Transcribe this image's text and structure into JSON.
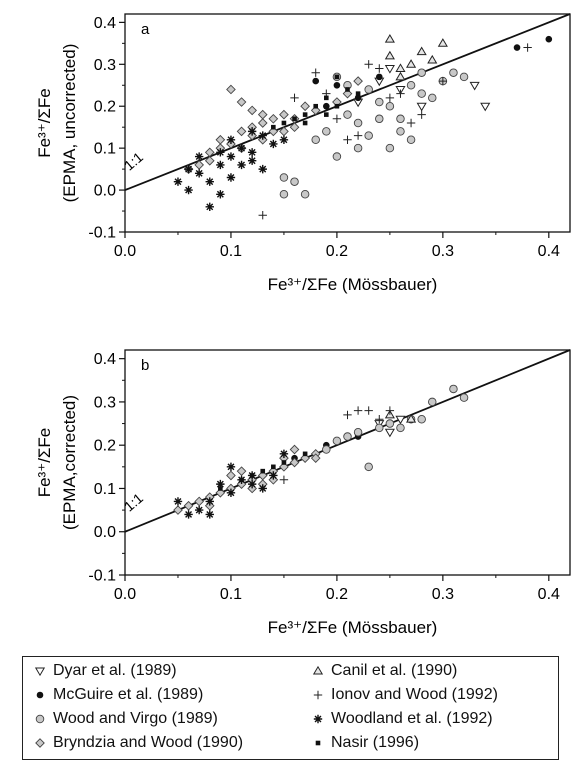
{
  "chart_data": [
    {
      "type": "scatter",
      "panel_label": "a",
      "xlabel": "Fe³⁺/ΣFe (Mössbauer)",
      "ylabel_line1": "Fe³⁺/ΣFe",
      "ylabel_line2": "(EPMA, uncorrected)",
      "xlim": [
        0.0,
        0.42
      ],
      "ylim": [
        -0.1,
        0.42
      ],
      "xticks": [
        "0.0",
        "0.1",
        "0.2",
        "0.3",
        "0.4"
      ],
      "yticks": [
        "-0.1",
        "0.0",
        "0.1",
        "0.2",
        "0.3",
        "0.4"
      ],
      "line_label": "1:1",
      "grid": false,
      "series": [
        {
          "name": "Dyar et al. (1989)",
          "marker": "tri-down",
          "points": [
            [
              0.24,
              0.26
            ],
            [
              0.26,
              0.24
            ],
            [
              0.28,
              0.2
            ],
            [
              0.33,
              0.25
            ],
            [
              0.34,
              0.2
            ],
            [
              0.22,
              0.21
            ],
            [
              0.25,
              0.29
            ]
          ]
        },
        {
          "name": "McGuire et al. (1989)",
          "marker": "dot",
          "points": [
            [
              0.37,
              0.34
            ],
            [
              0.4,
              0.36
            ],
            [
              0.18,
              0.26
            ],
            [
              0.2,
              0.25
            ],
            [
              0.22,
              0.22
            ],
            [
              0.19,
              0.2
            ],
            [
              0.24,
              0.27
            ]
          ]
        },
        {
          "name": "Wood and Virgo (1989)",
          "marker": "circle",
          "points": [
            [
              0.15,
              0.03
            ],
            [
              0.16,
              0.02
            ],
            [
              0.15,
              -0.01
            ],
            [
              0.17,
              -0.01
            ],
            [
              0.2,
              0.08
            ],
            [
              0.22,
              0.1
            ],
            [
              0.23,
              0.13
            ],
            [
              0.25,
              0.1
            ],
            [
              0.27,
              0.12
            ],
            [
              0.26,
              0.17
            ],
            [
              0.28,
              0.23
            ],
            [
              0.29,
              0.22
            ],
            [
              0.31,
              0.28
            ],
            [
              0.32,
              0.27
            ],
            [
              0.2,
              0.27
            ],
            [
              0.21,
              0.25
            ],
            [
              0.23,
              0.24
            ],
            [
              0.24,
              0.21
            ],
            [
              0.25,
              0.2
            ],
            [
              0.27,
              0.25
            ],
            [
              0.19,
              0.14
            ],
            [
              0.21,
              0.18
            ],
            [
              0.18,
              0.12
            ],
            [
              0.22,
              0.16
            ],
            [
              0.24,
              0.17
            ],
            [
              0.26,
              0.14
            ],
            [
              0.3,
              0.26
            ],
            [
              0.28,
              0.28
            ]
          ]
        },
        {
          "name": "Bryndzia and Wood (1990)",
          "marker": "diamond",
          "points": [
            [
              0.06,
              0.05
            ],
            [
              0.07,
              0.06
            ],
            [
              0.08,
              0.07
            ],
            [
              0.09,
              0.1
            ],
            [
              0.1,
              0.11
            ],
            [
              0.11,
              0.14
            ],
            [
              0.12,
              0.15
            ],
            [
              0.13,
              0.16
            ],
            [
              0.14,
              0.14
            ],
            [
              0.15,
              0.18
            ],
            [
              0.16,
              0.17
            ],
            [
              0.1,
              0.24
            ],
            [
              0.11,
              0.21
            ],
            [
              0.12,
              0.13
            ],
            [
              0.13,
              0.12
            ],
            [
              0.14,
              0.17
            ],
            [
              0.16,
              0.15
            ],
            [
              0.17,
              0.2
            ],
            [
              0.18,
              0.19
            ],
            [
              0.2,
              0.21
            ],
            [
              0.08,
              0.09
            ],
            [
              0.09,
              0.12
            ],
            [
              0.12,
              0.19
            ],
            [
              0.15,
              0.14
            ],
            [
              0.11,
              0.1
            ],
            [
              0.13,
              0.18
            ],
            [
              0.21,
              0.23
            ],
            [
              0.22,
              0.26
            ]
          ]
        },
        {
          "name": "Canil et al. (1990)",
          "marker": "tri-up",
          "points": [
            [
              0.25,
              0.32
            ],
            [
              0.26,
              0.29
            ],
            [
              0.27,
              0.3
            ],
            [
              0.29,
              0.31
            ],
            [
              0.3,
              0.35
            ],
            [
              0.25,
              0.36
            ],
            [
              0.28,
              0.33
            ],
            [
              0.26,
              0.27
            ]
          ]
        },
        {
          "name": "Ionov and Wood (1992)",
          "marker": "plus",
          "points": [
            [
              0.18,
              0.28
            ],
            [
              0.19,
              0.23
            ],
            [
              0.13,
              -0.06
            ],
            [
              0.16,
              0.22
            ],
            [
              0.21,
              0.12
            ],
            [
              0.22,
              0.13
            ],
            [
              0.24,
              0.29
            ],
            [
              0.26,
              0.23
            ],
            [
              0.27,
              0.16
            ],
            [
              0.28,
              0.18
            ],
            [
              0.3,
              0.26
            ],
            [
              0.38,
              0.34
            ],
            [
              0.2,
              0.17
            ],
            [
              0.23,
              0.3
            ],
            [
              0.25,
              0.22
            ]
          ]
        },
        {
          "name": "Woodland et al. (1992)",
          "marker": "star",
          "points": [
            [
              0.05,
              0.02
            ],
            [
              0.06,
              0.0
            ],
            [
              0.07,
              0.04
            ],
            [
              0.08,
              0.02
            ],
            [
              0.09,
              -0.01
            ],
            [
              0.08,
              -0.04
            ],
            [
              0.1,
              0.03
            ],
            [
              0.09,
              0.06
            ],
            [
              0.1,
              0.08
            ],
            [
              0.11,
              0.1
            ],
            [
              0.12,
              0.07
            ],
            [
              0.13,
              0.05
            ],
            [
              0.1,
              0.12
            ],
            [
              0.12,
              0.14
            ],
            [
              0.14,
              0.11
            ],
            [
              0.09,
              0.09
            ],
            [
              0.11,
              0.06
            ],
            [
              0.15,
              0.12
            ],
            [
              0.07,
              0.08
            ],
            [
              0.06,
              0.05
            ],
            [
              0.12,
              0.09
            ],
            [
              0.13,
              0.13
            ]
          ]
        },
        {
          "name": "Nasir (1996)",
          "marker": "small-dot",
          "points": [
            [
              0.16,
              0.17
            ],
            [
              0.17,
              0.18
            ],
            [
              0.18,
              0.2
            ],
            [
              0.19,
              0.22
            ],
            [
              0.2,
              0.2
            ],
            [
              0.21,
              0.24
            ],
            [
              0.2,
              0.27
            ],
            [
              0.17,
              0.16
            ],
            [
              0.19,
              0.18
            ],
            [
              0.22,
              0.23
            ],
            [
              0.14,
              0.15
            ],
            [
              0.15,
              0.16
            ]
          ]
        }
      ]
    },
    {
      "type": "scatter",
      "panel_label": "b",
      "xlabel": "Fe³⁺/ΣFe (Mössbauer)",
      "ylabel_line1": "Fe³⁺/ΣFe",
      "ylabel_line2": "(EPMA,corrected)",
      "xlim": [
        0.0,
        0.42
      ],
      "ylim": [
        -0.1,
        0.42
      ],
      "xticks": [
        "0.0",
        "0.1",
        "0.2",
        "0.3",
        "0.4"
      ],
      "yticks": [
        "-0.1",
        "0.0",
        "0.1",
        "0.2",
        "0.3",
        "0.4"
      ],
      "line_label": "1:1",
      "grid": false,
      "series": [
        {
          "name": "Dyar et al. (1989)",
          "marker": "tri-down",
          "points": [
            [
              0.24,
              0.25
            ],
            [
              0.26,
              0.26
            ],
            [
              0.25,
              0.23
            ]
          ]
        },
        {
          "name": "McGuire et al. (1989)",
          "marker": "dot",
          "points": [
            [
              0.16,
              0.17
            ],
            [
              0.19,
              0.2
            ],
            [
              0.22,
              0.22
            ]
          ]
        },
        {
          "name": "Wood and Virgo (1989)",
          "marker": "circle",
          "points": [
            [
              0.23,
              0.15
            ],
            [
              0.25,
              0.25
            ],
            [
              0.27,
              0.26
            ],
            [
              0.28,
              0.26
            ],
            [
              0.29,
              0.3
            ],
            [
              0.31,
              0.33
            ],
            [
              0.32,
              0.31
            ],
            [
              0.22,
              0.23
            ],
            [
              0.2,
              0.21
            ],
            [
              0.21,
              0.22
            ],
            [
              0.26,
              0.24
            ],
            [
              0.19,
              0.19
            ],
            [
              0.24,
              0.24
            ]
          ]
        },
        {
          "name": "Bryndzia and Wood (1990)",
          "marker": "diamond",
          "points": [
            [
              0.05,
              0.05
            ],
            [
              0.06,
              0.06
            ],
            [
              0.07,
              0.07
            ],
            [
              0.08,
              0.08
            ],
            [
              0.09,
              0.09
            ],
            [
              0.1,
              0.1
            ],
            [
              0.11,
              0.11
            ],
            [
              0.12,
              0.12
            ],
            [
              0.13,
              0.13
            ],
            [
              0.14,
              0.14
            ],
            [
              0.15,
              0.15
            ],
            [
              0.16,
              0.16
            ],
            [
              0.17,
              0.17
            ],
            [
              0.18,
              0.18
            ],
            [
              0.1,
              0.13
            ],
            [
              0.12,
              0.1
            ],
            [
              0.14,
              0.12
            ],
            [
              0.16,
              0.19
            ],
            [
              0.18,
              0.17
            ],
            [
              0.08,
              0.06
            ],
            [
              0.11,
              0.14
            ],
            [
              0.13,
              0.11
            ],
            [
              0.15,
              0.17
            ]
          ]
        },
        {
          "name": "Canil et al. (1990)",
          "marker": "tri-up",
          "points": [
            [
              0.25,
              0.27
            ],
            [
              0.27,
              0.26
            ]
          ]
        },
        {
          "name": "Ionov and Wood (1992)",
          "marker": "plus",
          "points": [
            [
              0.21,
              0.27
            ],
            [
              0.22,
              0.28
            ],
            [
              0.23,
              0.28
            ],
            [
              0.24,
              0.26
            ],
            [
              0.25,
              0.28
            ],
            [
              0.15,
              0.12
            ]
          ]
        },
        {
          "name": "Woodland et al. (1992)",
          "marker": "star",
          "points": [
            [
              0.05,
              0.07
            ],
            [
              0.07,
              0.05
            ],
            [
              0.08,
              0.07
            ],
            [
              0.09,
              0.11
            ],
            [
              0.1,
              0.09
            ],
            [
              0.11,
              0.12
            ],
            [
              0.12,
              0.11
            ],
            [
              0.13,
              0.1
            ],
            [
              0.14,
              0.13
            ],
            [
              0.15,
              0.18
            ],
            [
              0.08,
              0.04
            ],
            [
              0.1,
              0.15
            ],
            [
              0.06,
              0.04
            ],
            [
              0.12,
              0.13
            ]
          ]
        },
        {
          "name": "Nasir (1996)",
          "marker": "small-dot",
          "points": [
            [
              0.09,
              0.1
            ],
            [
              0.11,
              0.12
            ],
            [
              0.13,
              0.14
            ],
            [
              0.15,
              0.16
            ],
            [
              0.17,
              0.18
            ],
            [
              0.12,
              0.13
            ],
            [
              0.14,
              0.15
            ]
          ]
        }
      ]
    }
  ],
  "legend": {
    "items": [
      {
        "name": "Dyar et al. (1989)",
        "marker": "tri-down"
      },
      {
        "name": "McGuire et al. (1989)",
        "marker": "dot"
      },
      {
        "name": "Wood and Virgo (1989)",
        "marker": "circle"
      },
      {
        "name": "Bryndzia and Wood (1990)",
        "marker": "diamond"
      },
      {
        "name": "Canil et al. (1990)",
        "marker": "tri-up"
      },
      {
        "name": "Ionov and Wood (1992)",
        "marker": "plus"
      },
      {
        "name": "Woodland et al. (1992)",
        "marker": "star"
      },
      {
        "name": "Nasir (1996)",
        "marker": "small-dot"
      }
    ]
  },
  "colors": {
    "marker_fill": "#c8c8c8",
    "marker_stroke": "#444444",
    "axis": "#111111",
    "dark": "#111111"
  }
}
